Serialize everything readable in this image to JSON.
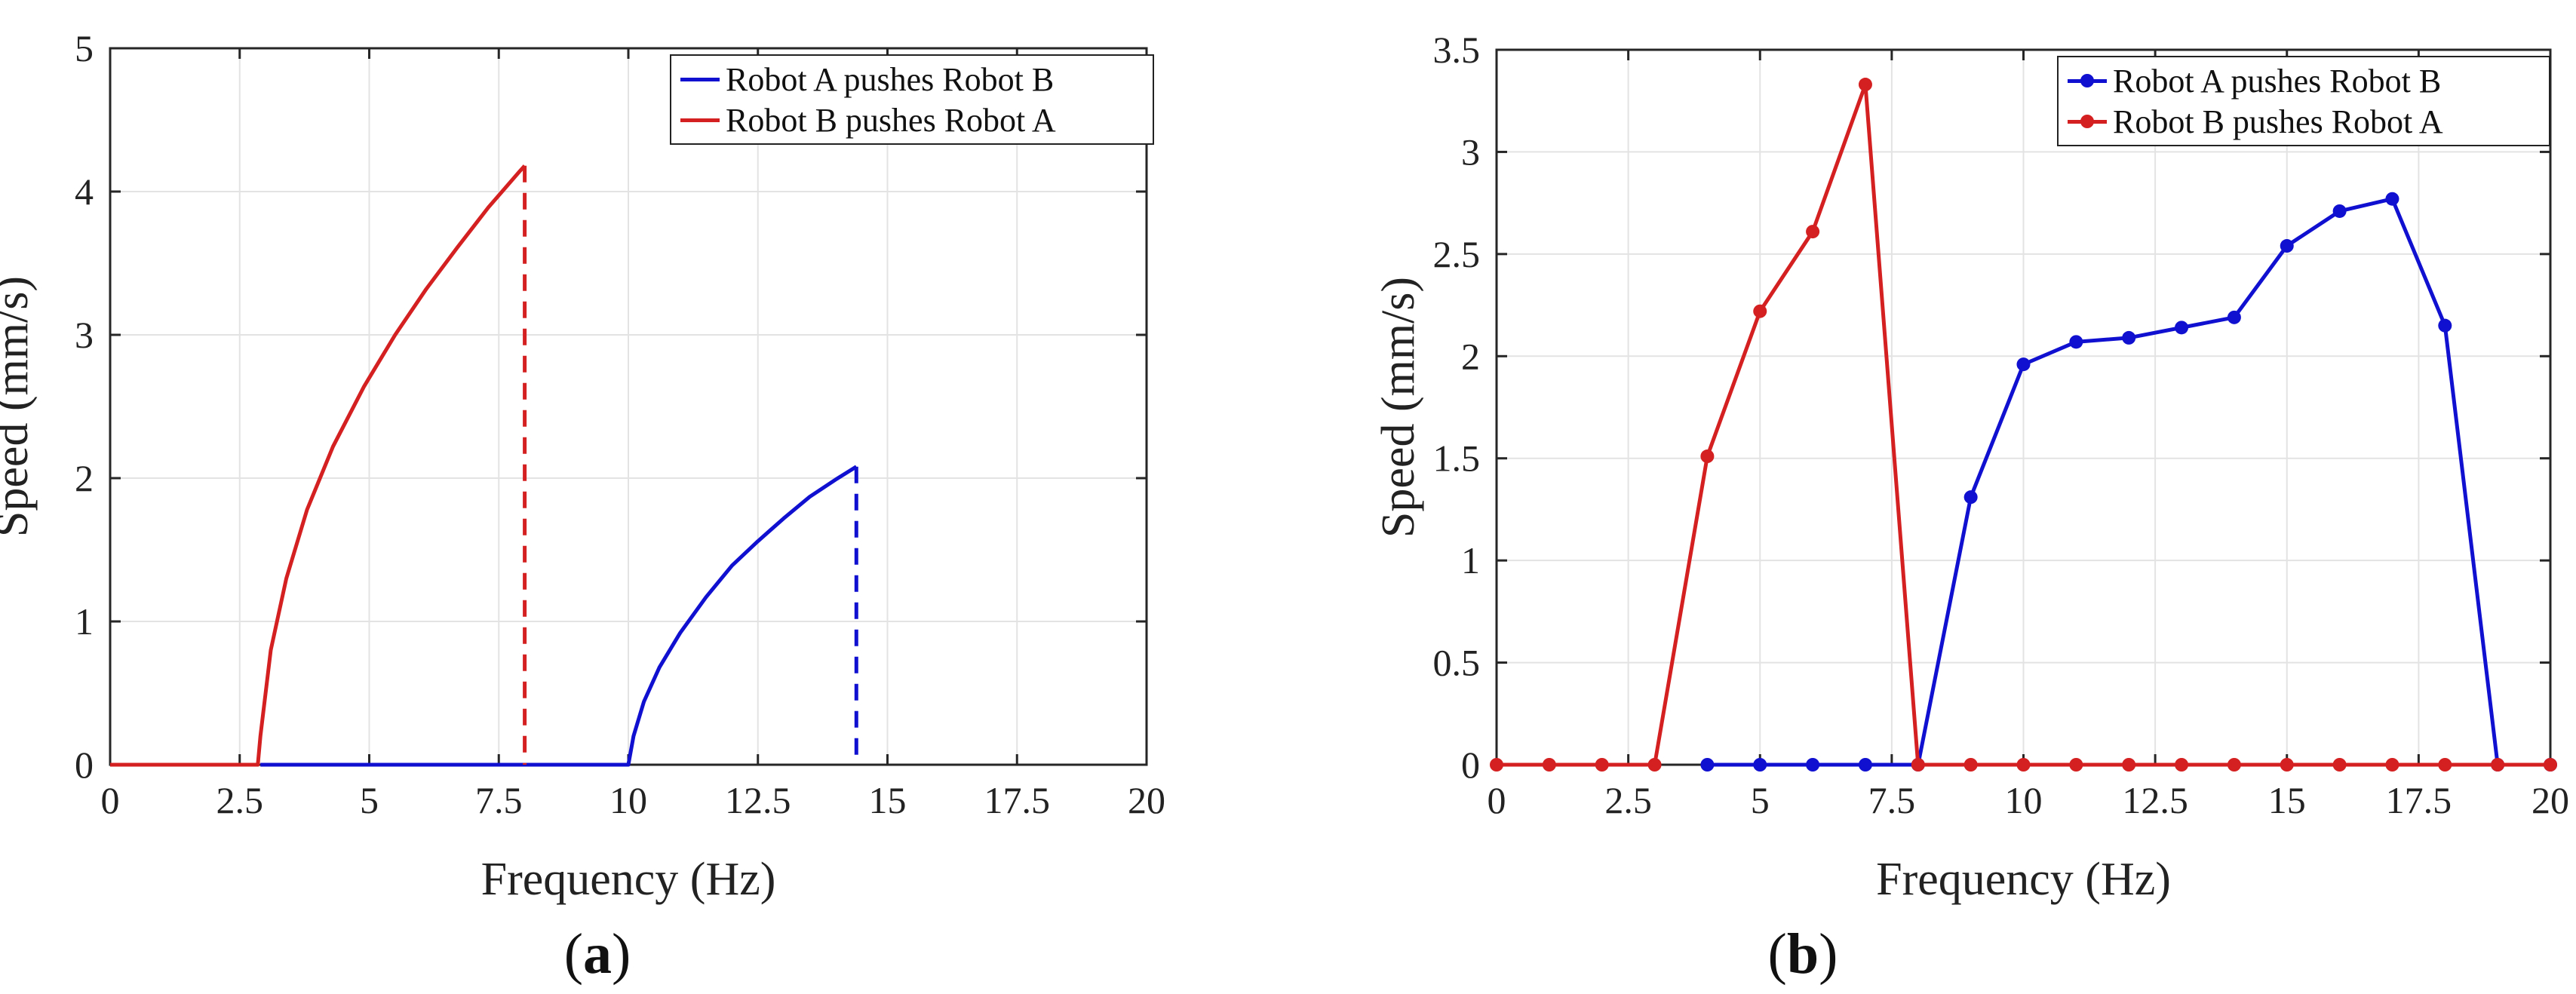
{
  "colors": {
    "blue": "#1010d0",
    "red": "#d42020",
    "grid": "#e3e3e3",
    "axis": "#262626"
  },
  "chart_data": [
    {
      "id": "a",
      "type": "line",
      "caption_letter": "a",
      "xlabel": "Frequency (Hz)",
      "ylabel": "Speed (mm/s)",
      "xlim": [
        0,
        20
      ],
      "ylim": [
        0,
        5
      ],
      "xticks": [
        0,
        2.5,
        5,
        7.5,
        10,
        12.5,
        15,
        17.5,
        20
      ],
      "xtick_labels": [
        "0",
        "2.5",
        "5",
        "7.5",
        "10",
        "12.5",
        "15",
        "17.5",
        "20"
      ],
      "yticks": [
        0,
        1,
        2,
        3,
        4,
        5
      ],
      "ytick_labels": [
        "0",
        "1",
        "2",
        "3",
        "4",
        "5"
      ],
      "grid": true,
      "legend_position": "top-right",
      "series": [
        {
          "name": "Robot A pushes Robot B",
          "color": "blue",
          "markers": false,
          "x": [
            2.9,
            10.0,
            10.1,
            10.3,
            10.6,
            11.0,
            11.5,
            12.0,
            12.5,
            13.0,
            13.5,
            14.0,
            14.4
          ],
          "y": [
            0,
            0,
            0.2,
            0.44,
            0.68,
            0.92,
            1.17,
            1.39,
            1.56,
            1.72,
            1.87,
            1.99,
            2.08
          ],
          "dashed_drop": {
            "x": 14.4,
            "from": 2.08,
            "to": 0
          }
        },
        {
          "name": "Robot B pushes Robot A",
          "color": "red",
          "markers": false,
          "x": [
            0,
            2.85,
            2.9,
            3.1,
            3.4,
            3.8,
            4.3,
            4.9,
            5.5,
            6.1,
            6.7,
            7.3,
            7.9,
            8.0
          ],
          "y": [
            0,
            0,
            0.2,
            0.8,
            1.3,
            1.78,
            2.22,
            2.64,
            3.0,
            3.32,
            3.61,
            3.89,
            4.14,
            4.18
          ],
          "dashed_drop": {
            "x": 8.0,
            "from": 4.18,
            "to": 0
          }
        }
      ]
    },
    {
      "id": "b",
      "type": "line",
      "caption_letter": "b",
      "xlabel": "Frequency (Hz)",
      "ylabel": "Speed (mm/s)",
      "xlim": [
        0,
        20
      ],
      "ylim": [
        0,
        3.5
      ],
      "xticks": [
        0,
        2.5,
        5,
        7.5,
        10,
        12.5,
        15,
        17.5,
        20
      ],
      "xtick_labels": [
        "0",
        "2.5",
        "5",
        "7.5",
        "10",
        "12.5",
        "15",
        "17.5",
        "20"
      ],
      "yticks": [
        0,
        0.5,
        1,
        1.5,
        2,
        2.5,
        3,
        3.5
      ],
      "ytick_labels": [
        "0",
        "0.5",
        "1",
        "1.5",
        "2",
        "2.5",
        "3",
        "3.5"
      ],
      "grid": true,
      "legend_position": "top-right",
      "series": [
        {
          "name": "Robot A pushes Robot B",
          "color": "blue",
          "markers": true,
          "x": [
            4,
            5,
            6,
            7,
            8,
            9,
            10,
            11,
            12,
            13,
            14,
            15,
            16,
            17,
            18,
            19,
            20
          ],
          "y": [
            0,
            0,
            0,
            0,
            0,
            1.31,
            1.96,
            2.07,
            2.09,
            2.14,
            2.19,
            2.54,
            2.71,
            2.77,
            2.15,
            0,
            0
          ]
        },
        {
          "name": "Robot B pushes Robot A",
          "color": "red",
          "markers": true,
          "x": [
            0,
            1,
            2,
            3,
            4,
            5,
            6,
            7,
            8,
            9,
            10,
            11,
            12,
            13,
            14,
            15,
            16,
            17,
            18,
            19,
            20
          ],
          "y": [
            0,
            0,
            0,
            0,
            1.51,
            2.22,
            2.61,
            3.33,
            0,
            0,
            0,
            0,
            0,
            0,
            0,
            0,
            0,
            0,
            0,
            0,
            0
          ]
        }
      ]
    }
  ]
}
